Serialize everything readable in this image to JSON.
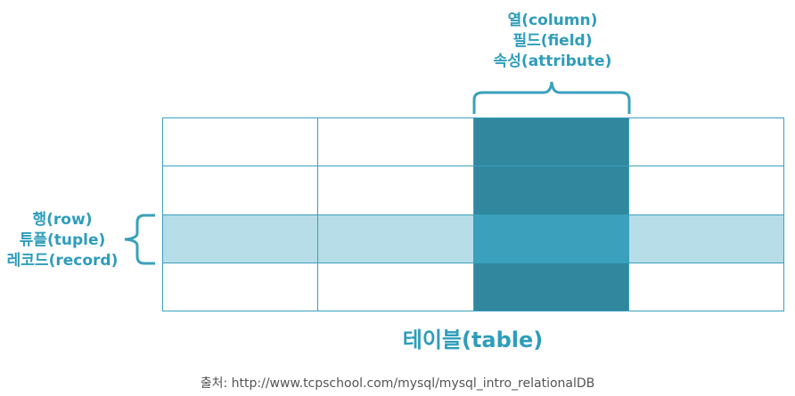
{
  "column_labels": [
    "열(column)",
    "필드(field)",
    "속성(attribute)"
  ],
  "row_labels": [
    "행(row)",
    "튜플(tuple)",
    "레코드(record)"
  ],
  "table_caption": "테이블(table)",
  "source_text": "출처: http://www.tcpschool.com/mysql/mysql_intro_relationalDB",
  "grid": {
    "rows": 4,
    "cols": 4,
    "highlight_row": 2,
    "highlight_col": 2
  },
  "colors": {
    "text_accent": "#2e9dbb",
    "border": "#3aa0bc",
    "column_fill": "#31879e",
    "row_fill": "#b7dde8",
    "intersection_fill": "#3aa0bc"
  }
}
